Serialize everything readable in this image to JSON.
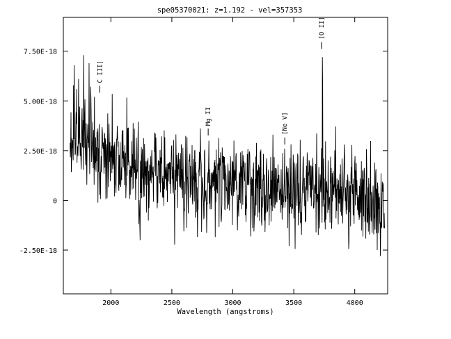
{
  "chart_data": {
    "type": "line",
    "title": "spe05370021: z=1.192 - vel=357353",
    "xlabel": "Wavelength (angstroms)",
    "ylabel": "",
    "xlim": [
      1610,
      4270
    ],
    "ylim": [
      -4.7e-18,
      9.2e-18
    ],
    "x_ticks": [
      2000,
      2500,
      3000,
      3500,
      4000
    ],
    "x_tick_labels": [
      "2000",
      "2500",
      "3000",
      "3500",
      "4000"
    ],
    "y_ticks": [
      7.5e-18,
      5e-18,
      2.5e-18,
      0,
      -2.5e-18
    ],
    "y_tick_labels": [
      "7.50E-18",
      "5.00E-18",
      "2.50E-18",
      "0",
      "-2.50E-18"
    ],
    "spectrum_range": [
      1665,
      4245
    ],
    "spectrum_anchors": {
      "x": [
        1665,
        1700,
        1750,
        1800,
        1850,
        1900,
        1950,
        2000,
        2100,
        2200,
        2300,
        2400,
        2500,
        2600,
        2700,
        2800,
        2900,
        3000,
        3100,
        3200,
        3300,
        3400,
        3500,
        3600,
        3700,
        3800,
        3900,
        4000,
        4100,
        4200,
        4245
      ],
      "y": [
        2.4e-18,
        3.2e-18,
        3.4e-18,
        3e-18,
        2.7e-18,
        2.5e-18,
        2.3e-18,
        2.1e-18,
        1.9e-18,
        1.7e-18,
        1.6e-18,
        1.4e-18,
        1.2e-18,
        1.1e-18,
        1e-18,
        9.5e-19,
        9e-19,
        8e-19,
        7e-19,
        6e-19,
        5.5e-19,
        5e-19,
        4.5e-19,
        4e-19,
        4e-19,
        3.5e-19,
        3e-19,
        2e-19,
        0.0,
        -3e-19,
        -4e-19
      ]
    },
    "spectrum_noise_sigma": 1.1e-18,
    "spikes": [
      {
        "x": 1700,
        "y": 6.8e-18
      },
      {
        "x": 1720,
        "y": 5.6e-18
      },
      {
        "x": 1778,
        "y": 7.3e-18
      },
      {
        "x": 1820,
        "y": 6.9e-18
      },
      {
        "x": 1865,
        "y": 5.2e-18
      },
      {
        "x": 2805,
        "y": 3e-18
      },
      {
        "x": 3330,
        "y": 3.3e-18
      },
      {
        "x": 3426,
        "y": 2.6e-18
      },
      {
        "x": 3735,
        "y": 7.2e-18
      },
      {
        "x": 3738,
        "y": 5.6e-18
      },
      {
        "x": 4210,
        "y": -2.8e-18
      },
      {
        "x": 4185,
        "y": -2.5e-18
      }
    ],
    "line_markers": [
      {
        "label": "C III]",
        "x": 1909,
        "y": 5.2e-18
      },
      {
        "label": "Mg II",
        "x": 2798,
        "y": 3.05e-18
      },
      {
        "label": "[Ne V]",
        "x": 3426,
        "y": 2.6e-18
      },
      {
        "label": "[O II]",
        "x": 3727,
        "y": 7.4e-18
      }
    ]
  }
}
